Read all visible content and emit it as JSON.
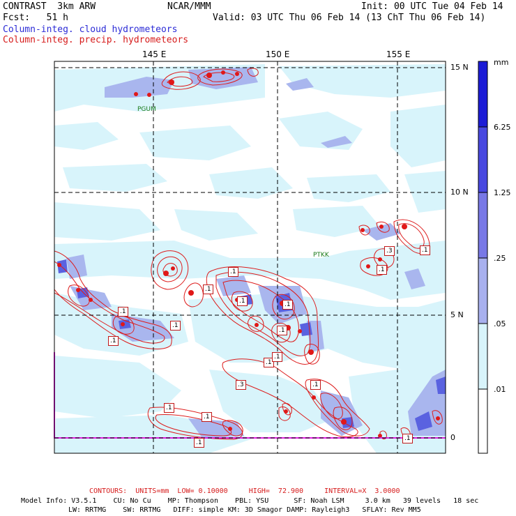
{
  "header": {
    "model": "CONTRAST  3km ARW",
    "org": "NCAR/MMM",
    "init": "Init: 00 UTC Tue 04 Feb 14",
    "fcst": "Fcst:   51 h",
    "valid": "Valid: 03 UTC Thu 06 Feb 14 (13 ChT Thu 06 Feb 14)",
    "field1": "Column-integ. cloud hydrometeors",
    "field2": "Column-integ. precip. hydrometeors"
  },
  "map": {
    "lon_labels": [
      "145 E",
      "150 E",
      "155 E"
    ],
    "lat_labels": [
      "15 N",
      "10 N",
      "5 N",
      "0"
    ],
    "stations": [
      "PGUM",
      "PTKK"
    ],
    "contour_labels": [
      ".1",
      ".1",
      ".1",
      ".1",
      ".1",
      ".1",
      ".3",
      ".1",
      ".1",
      ".1",
      ".1",
      ".1",
      ".1",
      ".1",
      ".1",
      ".3",
      ".1",
      ".1",
      ".1"
    ],
    "colors": {
      "precip_contour": "#dd1c1c",
      "cloud_light": "#d8f4fb",
      "cloud_mid": "#a9b6ee",
      "cloud_dark": "#5a62e0",
      "boundary": "#e020e0"
    }
  },
  "colorbar": {
    "unit": "mm",
    "labels": [
      "6.25",
      "1.25",
      ".25",
      ".05",
      ".01"
    ],
    "colors": [
      "#1c1cd6",
      "#4848e0",
      "#7878e6",
      "#a8b0ee",
      "#d8f4fb",
      "#ffffff"
    ]
  },
  "footer": {
    "contours": "CONTOURS:  UNITS=mm  LOW= 0.10000     HIGH=  72.900     INTERVAL=X  3.0000",
    "model_info_1": "Model Info: V3.5.1    CU: No Cu    MP: Thompson    PBL: YSU      SF: Noah LSM     3.0 km   39 levels   18 sec",
    "model_info_2": "LW: RRTMG    SW: RRTMG   DIFF: simple KM: 3D Smagor DAMP: Rayleigh3   SFLAY: Rev MM5"
  }
}
